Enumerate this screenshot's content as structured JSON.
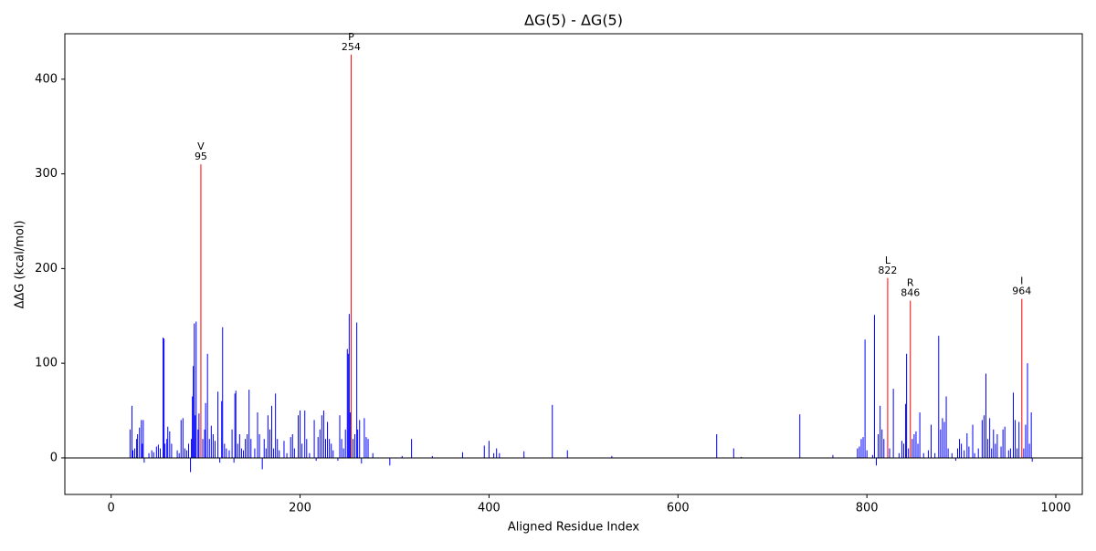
{
  "chart_data": {
    "type": "bar",
    "title": "ΔG(5) - ΔG(5)",
    "x_label": "Aligned Residue Index",
    "y_label": "ΔΔG (kcal/mol)",
    "xlim": [
      -49,
      1028
    ],
    "ylim": [
      -38.6,
      448
    ],
    "xticks": [
      0,
      200,
      400,
      600,
      800,
      1000
    ],
    "yticks": [
      0,
      100,
      200,
      300,
      400
    ],
    "series": [
      {
        "color": "#0000ff",
        "x": [
          20,
          22,
          23,
          25,
          27,
          28,
          30,
          32,
          33,
          34,
          35,
          40,
          43,
          45,
          48,
          50,
          52,
          55,
          56,
          57,
          59,
          60,
          62,
          64,
          70,
          72,
          74,
          76,
          78,
          80,
          82,
          84,
          85,
          86,
          87,
          88,
          89,
          90,
          92,
          93,
          97,
          99,
          100,
          102,
          104,
          106,
          108,
          110,
          113,
          115,
          117,
          118,
          120,
          122,
          125,
          128,
          130,
          131,
          132,
          134,
          136,
          138,
          140,
          142,
          144,
          146,
          148,
          152,
          155,
          157,
          160,
          162,
          164,
          166,
          168,
          170,
          172,
          174,
          176,
          178,
          183,
          186,
          190,
          192,
          194,
          198,
          200,
          202,
          205,
          207,
          210,
          215,
          217,
          219,
          221,
          223,
          225,
          227,
          229,
          231,
          233,
          235,
          240,
          242,
          244,
          246,
          248,
          250,
          251,
          252,
          253,
          256,
          258,
          260,
          261,
          263,
          265,
          268,
          270,
          272,
          277,
          295,
          308,
          318,
          340,
          372,
          395,
          400,
          405,
          408,
          411,
          437,
          467,
          483,
          530,
          641,
          659,
          667,
          729,
          764,
          790,
          792,
          794,
          796,
          798,
          800,
          806,
          808,
          810,
          812,
          814,
          816,
          818,
          824,
          828,
          834,
          837,
          839,
          841,
          842,
          844,
          848,
          850,
          852,
          854,
          856,
          860,
          865,
          868,
          872,
          876,
          878,
          880,
          882,
          884,
          886,
          890,
          894,
          896,
          898,
          900,
          903,
          906,
          908,
          912,
          914,
          918,
          922,
          924,
          926,
          928,
          930,
          932,
          934,
          936,
          938,
          942,
          944,
          946,
          950,
          952,
          955,
          957,
          959,
          961,
          966,
          968,
          970,
          972,
          974,
          975
        ],
        "values": [
          30,
          55,
          8,
          10,
          20,
          25,
          32,
          40,
          15,
          40,
          -5,
          5,
          8,
          6,
          12,
          14,
          10,
          127,
          126,
          15,
          20,
          33,
          28,
          15,
          8,
          5,
          40,
          42,
          10,
          8,
          15,
          -15,
          20,
          65,
          97,
          142,
          45,
          144,
          30,
          47,
          20,
          30,
          58,
          110,
          20,
          34,
          25,
          18,
          70,
          -5,
          60,
          138,
          15,
          10,
          8,
          30,
          -5,
          68,
          71,
          15,
          25,
          10,
          8,
          20,
          25,
          72,
          20,
          10,
          48,
          25,
          -12,
          20,
          10,
          45,
          30,
          55,
          10,
          68,
          20,
          8,
          18,
          5,
          22,
          25,
          10,
          45,
          50,
          15,
          50,
          20,
          5,
          40,
          -3,
          22,
          30,
          45,
          50,
          20,
          38,
          20,
          15,
          8,
          -3,
          45,
          20,
          10,
          30,
          115,
          110,
          152,
          48,
          20,
          25,
          143,
          30,
          40,
          -6,
          42,
          22,
          20,
          5,
          -8,
          2,
          20,
          2,
          6,
          13,
          18,
          5,
          10,
          5,
          7,
          56,
          8,
          2,
          25,
          10,
          1,
          46,
          3,
          10,
          12,
          20,
          22,
          125,
          8,
          3,
          151,
          -8,
          25,
          55,
          30,
          20,
          10,
          73,
          5,
          18,
          15,
          57,
          110,
          10,
          20,
          25,
          28,
          15,
          48,
          5,
          8,
          35,
          5,
          129,
          30,
          42,
          38,
          65,
          10,
          5,
          -3,
          10,
          20,
          15,
          8,
          26,
          12,
          35,
          5,
          10,
          40,
          45,
          89,
          20,
          42,
          10,
          30,
          15,
          25,
          12,
          30,
          33,
          8,
          10,
          69,
          40,
          10,
          38,
          10,
          35,
          100,
          15,
          48,
          -4
        ]
      },
      {
        "color": "#ff0000",
        "x": [
          95,
          254,
          822,
          846,
          964
        ],
        "values": [
          310,
          426,
          190,
          166,
          168
        ],
        "labels": [
          "V",
          "P",
          "L",
          "R",
          "I"
        ]
      }
    ]
  }
}
